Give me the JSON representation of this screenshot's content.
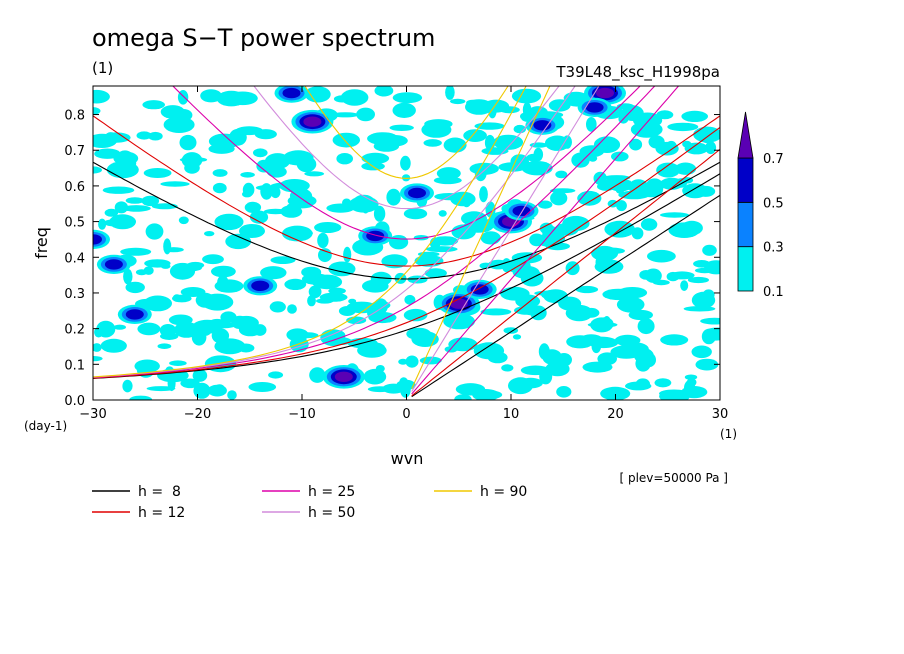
{
  "chart_data": {
    "type": "heatmap",
    "title": "omega S−T power spectrum",
    "title_unit": "(1)",
    "subtitle_right": "T39L48_ksc_H1998pa",
    "xlabel": "wvn",
    "xunit": "(1)",
    "ylabel": "freq",
    "yunit": "(day-1)",
    "xlim": [
      -30,
      30
    ],
    "ylim": [
      0,
      0.88
    ],
    "xticks": [
      -30,
      -20,
      -10,
      0,
      10,
      20,
      30
    ],
    "xtick_labels": [
      "−30",
      "−20",
      "−10",
      "0",
      "10",
      "20",
      "30"
    ],
    "yticks": [
      0.0,
      0.1,
      0.2,
      0.3,
      0.4,
      0.5,
      0.6,
      0.7,
      0.8
    ],
    "ytick_labels": [
      "0.0",
      "0.1",
      "0.2",
      "0.3",
      "0.4",
      "0.5",
      "0.6",
      "0.7",
      "0.8"
    ],
    "note": "[ plev=50000 Pa ]",
    "colorbar": {
      "levels": [
        0.1,
        0.3,
        0.5,
        0.7
      ],
      "labels": [
        "0.1",
        "0.3",
        "0.5",
        "0.7"
      ],
      "colors": [
        "#00f0f0",
        "#0a82ff",
        "#0000c8",
        "#5a00b4"
      ]
    },
    "patches": [
      {
        "x": -6,
        "y": 0.065,
        "level": 3
      },
      {
        "x": 5,
        "y": 0.27,
        "level": 3
      },
      {
        "x": 7,
        "y": 0.31,
        "level": 2
      },
      {
        "x": 10,
        "y": 0.5,
        "level": 3
      },
      {
        "x": 11,
        "y": 0.53,
        "level": 2
      },
      {
        "x": 19,
        "y": 0.86,
        "level": 3
      },
      {
        "x": 18,
        "y": 0.82,
        "level": 2
      },
      {
        "x": -11,
        "y": 0.86,
        "level": 2
      },
      {
        "x": -9,
        "y": 0.78,
        "level": 3
      },
      {
        "x": -26,
        "y": 0.24,
        "level": 2
      },
      {
        "x": -14,
        "y": 0.32,
        "level": 2
      },
      {
        "x": -30,
        "y": 0.45,
        "level": 2
      },
      {
        "x": 1,
        "y": 0.58,
        "level": 2
      },
      {
        "x": -28,
        "y": 0.38,
        "level": 2
      },
      {
        "x": 13,
        "y": 0.77,
        "level": 2
      },
      {
        "x": -3,
        "y": 0.46,
        "level": 2
      }
    ],
    "series": [
      {
        "name": "h =  8",
        "h": 8,
        "color": "#000000"
      },
      {
        "name": "h = 12",
        "h": 12,
        "color": "#e00000"
      },
      {
        "name": "h = 25",
        "h": 25,
        "color": "#dd00aa"
      },
      {
        "name": "h = 50",
        "h": 50,
        "color": "#d28cdc"
      },
      {
        "name": "h = 90",
        "h": 90,
        "color": "#f0c800"
      }
    ]
  }
}
